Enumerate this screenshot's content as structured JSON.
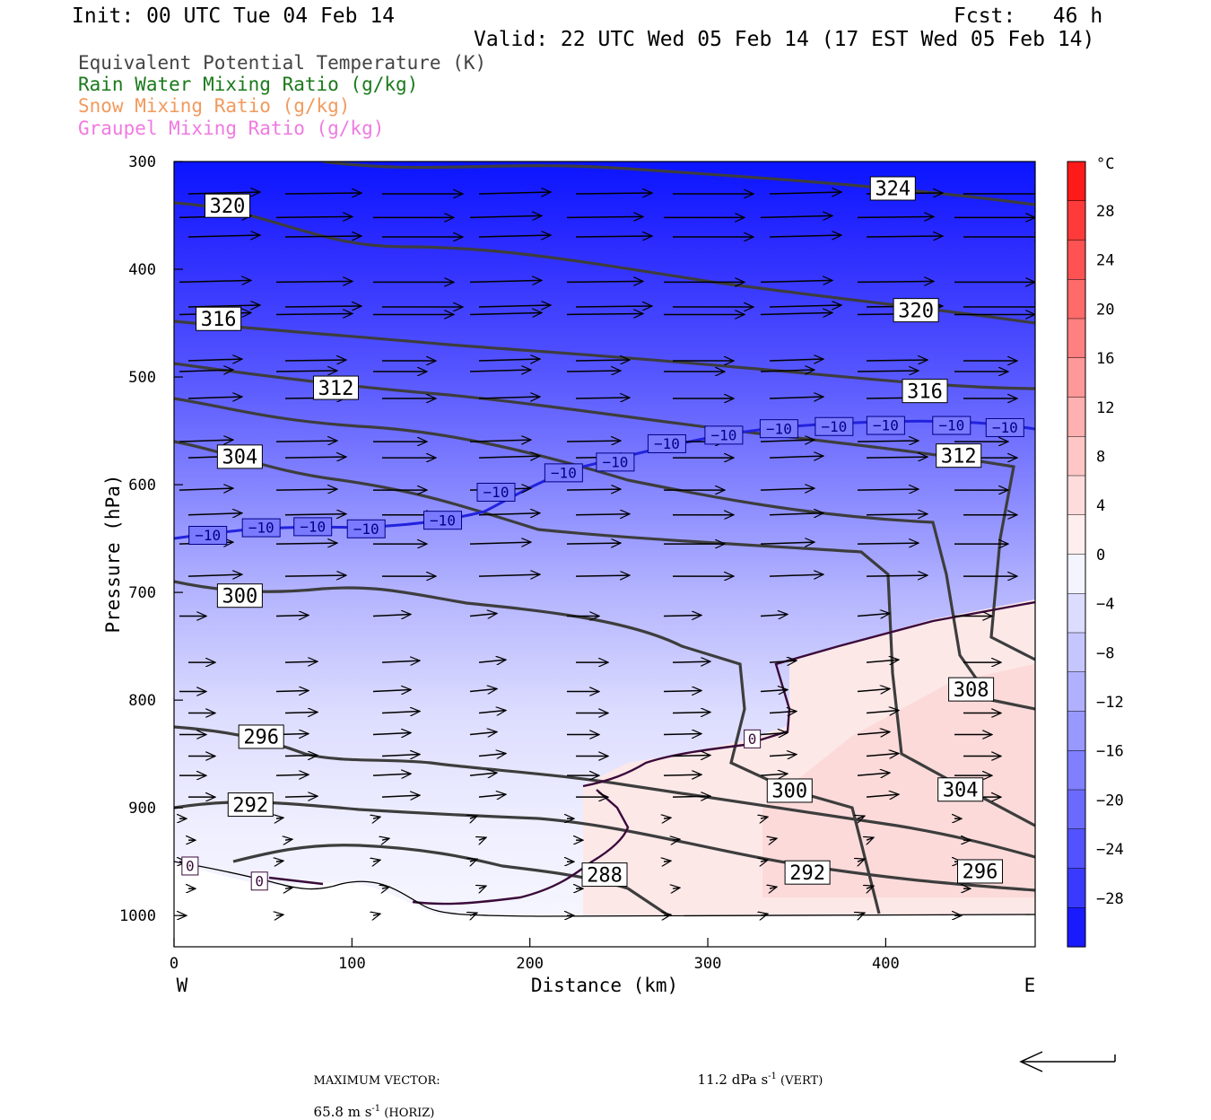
{
  "header": {
    "init": "Init: 00 UTC Tue 04 Feb 14",
    "fcst": "Fcst:   46 h",
    "valid": "Valid: 22 UTC Wed 05 Feb 14 (17 EST Wed 05 Feb 14)"
  },
  "legend": [
    {
      "label": "Equivalent Potential Temperature (K)",
      "color": "#444444"
    },
    {
      "label": "Rain Water Mixing Ratio (g/kg)",
      "color": "#1a7a1a"
    },
    {
      "label": "Snow Mixing Ratio (g/kg)",
      "color": "#f29a5e"
    },
    {
      "label": "Graupel Mixing Ratio (g/kg)",
      "color": "#f07ae0"
    }
  ],
  "chart_data": {
    "type": "heatmap",
    "xlabel": "Distance (km)",
    "ylabel": "Pressure (hPa)",
    "xlim": [
      0,
      484
    ],
    "ylim": [
      1029,
      300
    ],
    "xticks": [
      0,
      100,
      200,
      300,
      400
    ],
    "yticks": [
      300,
      400,
      500,
      600,
      700,
      800,
      900,
      1000
    ],
    "west_label": "W",
    "east_label": "E",
    "colorbar": {
      "unit": "°C",
      "ticks": [
        "28",
        "24",
        "20",
        "16",
        "12",
        "8",
        "4",
        "0",
        "−4",
        "−8",
        "−12",
        "−16",
        "−20",
        "−24",
        "−28"
      ],
      "colors": [
        "#ff1a1a",
        "#ff3a3a",
        "#ff5252",
        "#ff6a6a",
        "#ff8080",
        "#ff9898",
        "#ffb0b0",
        "#ffc6c6",
        "#ffdcdc",
        "#ffeeee",
        "#f4f4ff",
        "#dcdcff",
        "#c6c6ff",
        "#b0b0ff",
        "#9898ff",
        "#8080ff",
        "#6a6aff",
        "#5252ff",
        "#3a3aff",
        "#1a1aff"
      ]
    },
    "theta_e_labels": [
      {
        "text": "320",
        "x": 30,
        "p": 341
      },
      {
        "text": "324",
        "x": 404,
        "p": 325
      },
      {
        "text": "316",
        "x": 25,
        "p": 446
      },
      {
        "text": "320",
        "x": 417,
        "p": 438
      },
      {
        "text": "312",
        "x": 91,
        "p": 510
      },
      {
        "text": "316",
        "x": 422,
        "p": 513
      },
      {
        "text": "304",
        "x": 37,
        "p": 574
      },
      {
        "text": "312",
        "x": 441,
        "p": 573
      },
      {
        "text": "300",
        "x": 37,
        "p": 703
      },
      {
        "text": "308",
        "x": 448,
        "p": 790
      },
      {
        "text": "296",
        "x": 49,
        "p": 834
      },
      {
        "text": "300",
        "x": 346,
        "p": 884
      },
      {
        "text": "304",
        "x": 442,
        "p": 883
      },
      {
        "text": "292",
        "x": 43,
        "p": 897
      },
      {
        "text": "288",
        "x": 242,
        "p": 962
      },
      {
        "text": "292",
        "x": 356,
        "p": 960
      },
      {
        "text": "296",
        "x": 453,
        "p": 959
      }
    ],
    "isotherm_labels": [
      {
        "text": "−10",
        "x": 19,
        "p": 647
      },
      {
        "text": "−10",
        "x": 49,
        "p": 640
      },
      {
        "text": "−10",
        "x": 78,
        "p": 639
      },
      {
        "text": "−10",
        "x": 108,
        "p": 641
      },
      {
        "text": "−10",
        "x": 151,
        "p": 633
      },
      {
        "text": "−10",
        "x": 181,
        "p": 607
      },
      {
        "text": "−10",
        "x": 219,
        "p": 589
      },
      {
        "text": "−10",
        "x": 248,
        "p": 579
      },
      {
        "text": "−10",
        "x": 277,
        "p": 562
      },
      {
        "text": "−10",
        "x": 309,
        "p": 554
      },
      {
        "text": "−10",
        "x": 340,
        "p": 548
      },
      {
        "text": "−10",
        "x": 371,
        "p": 546
      },
      {
        "text": "−10",
        "x": 400,
        "p": 545
      },
      {
        "text": "−10",
        "x": 437,
        "p": 545
      },
      {
        "text": "−10",
        "x": 467,
        "p": 547
      }
    ],
    "zero_labels": [
      {
        "text": "0",
        "x": 325,
        "p": 836
      },
      {
        "text": "0",
        "x": 9,
        "p": 954
      },
      {
        "text": "0",
        "x": 48,
        "p": 968
      }
    ]
  },
  "footer": {
    "max_vector_label": "MAXIMUM VECTOR:",
    "horiz_value": "65.8 m s",
    "horiz_exp": "-1",
    "horiz_unit": " (HORIZ)",
    "vert_value": "11.2 dPa s",
    "vert_exp": "-1",
    "vert_unit": " (VERT)"
  }
}
